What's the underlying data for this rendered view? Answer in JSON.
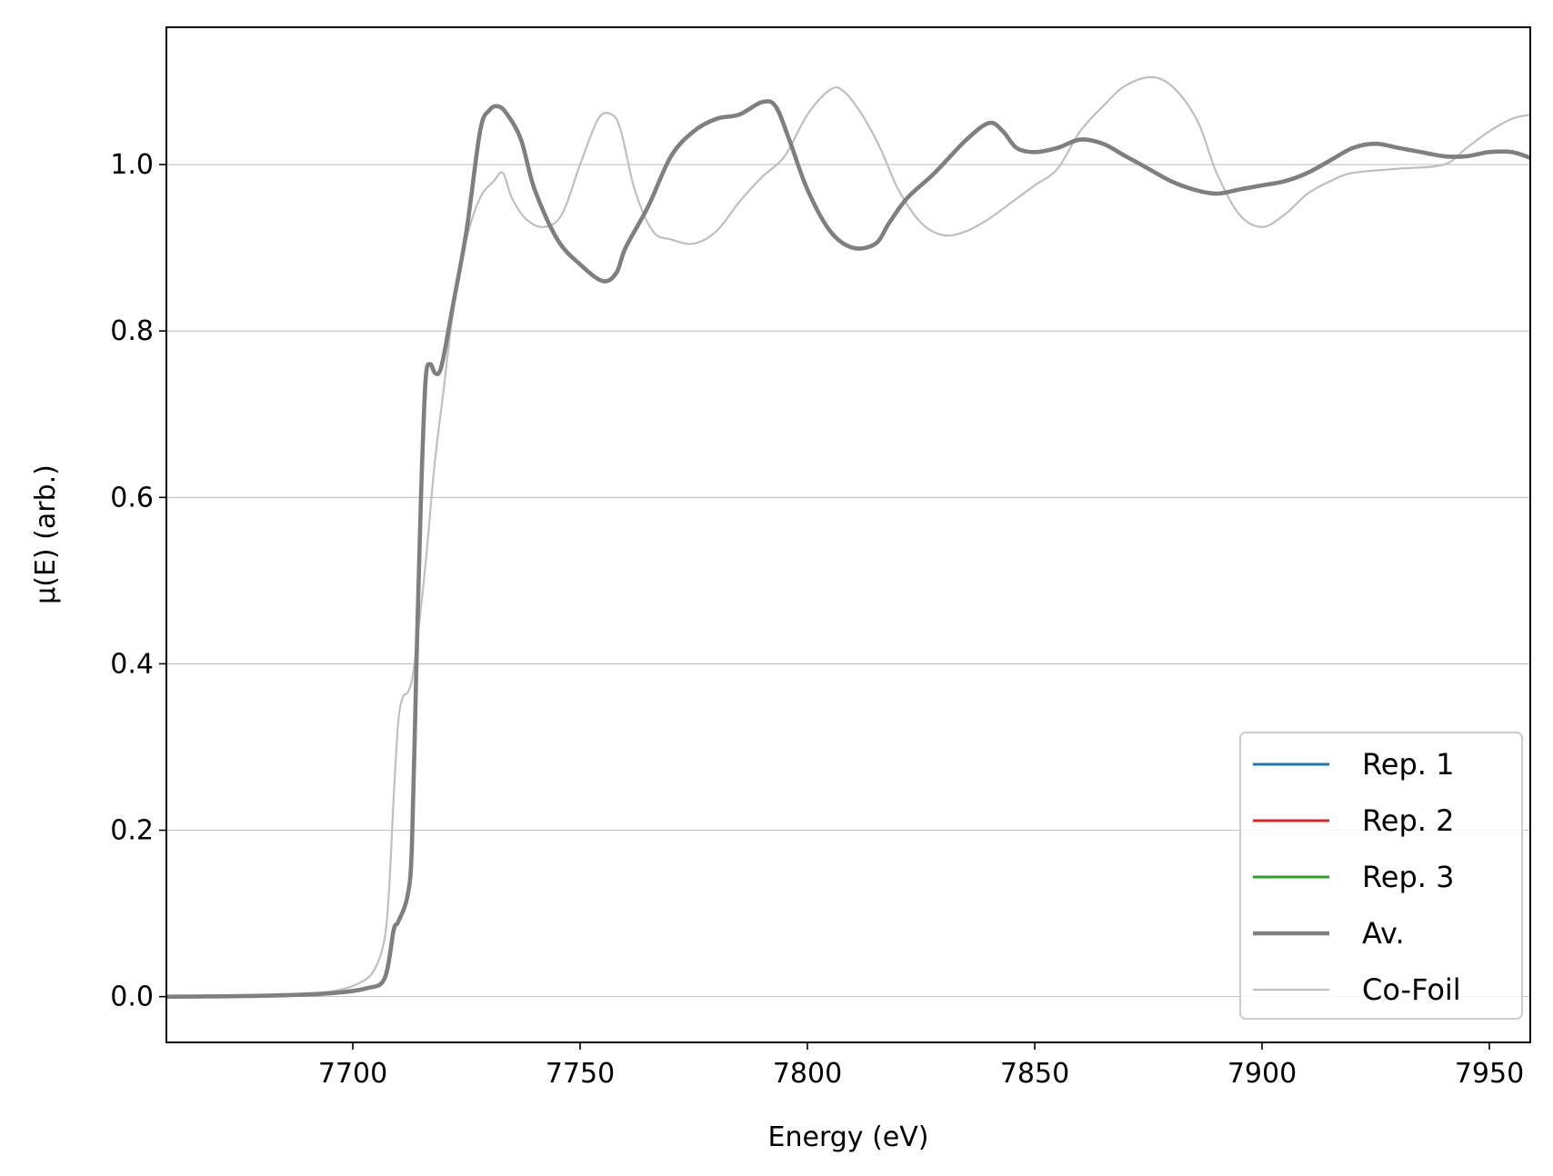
{
  "chart_data": {
    "type": "line",
    "title": "",
    "xlabel": "Energy (eV)",
    "ylabel": "µ(E) (arb.)",
    "xlim": [
      7659,
      7959
    ],
    "ylim": [
      -0.055,
      1.165
    ],
    "xticks": [
      7700,
      7750,
      7800,
      7850,
      7900,
      7950
    ],
    "yticks": [
      0.0,
      0.2,
      0.4,
      0.6,
      0.8,
      1.0
    ],
    "xtick_labels": [
      "7700",
      "7750",
      "7800",
      "7850",
      "7900",
      "7950"
    ],
    "ytick_labels": [
      "0.0",
      "0.2",
      "0.4",
      "0.6",
      "0.8",
      "1.0"
    ],
    "grid": "horizontal",
    "legend_position": "lower-right",
    "series": [
      {
        "name": "Rep. 1",
        "color": "#1f77b4",
        "x": [
          7659,
          7680,
          7695,
          7703,
          7707,
          7709,
          7710,
          7712,
          7713,
          7714,
          7715,
          7716,
          7717,
          7718,
          7719,
          7720,
          7722,
          7725,
          7728,
          7730,
          7732,
          7734,
          7737,
          7740,
          7745,
          7750,
          7755,
          7758,
          7760,
          7765,
          7770,
          7775,
          7780,
          7785,
          7790,
          7793,
          7796,
          7800,
          7805,
          7810,
          7815,
          7818,
          7822,
          7828,
          7835,
          7840,
          7843,
          7846,
          7850,
          7855,
          7860,
          7865,
          7870,
          7875,
          7880,
          7885,
          7890,
          7895,
          7900,
          7905,
          7910,
          7915,
          7920,
          7925,
          7930,
          7935,
          7940,
          7945,
          7950,
          7955,
          7959
        ],
        "y": [
          0.0,
          0.001,
          0.004,
          0.01,
          0.022,
          0.08,
          0.09,
          0.12,
          0.18,
          0.4,
          0.6,
          0.74,
          0.76,
          0.75,
          0.75,
          0.77,
          0.83,
          0.92,
          1.04,
          1.065,
          1.07,
          1.06,
          1.03,
          0.97,
          0.91,
          0.88,
          0.86,
          0.87,
          0.9,
          0.95,
          1.01,
          1.04,
          1.055,
          1.06,
          1.075,
          1.07,
          1.03,
          0.97,
          0.92,
          0.9,
          0.905,
          0.93,
          0.96,
          0.99,
          1.03,
          1.05,
          1.04,
          1.02,
          1.015,
          1.02,
          1.03,
          1.025,
          1.01,
          0.995,
          0.98,
          0.97,
          0.965,
          0.97,
          0.975,
          0.98,
          0.99,
          1.005,
          1.02,
          1.025,
          1.02,
          1.015,
          1.01,
          1.01,
          1.015,
          1.015,
          1.008
        ]
      },
      {
        "name": "Rep. 2",
        "color": "#d62728",
        "x": [
          7659,
          7680,
          7695,
          7703,
          7707,
          7709,
          7710,
          7712,
          7713,
          7714,
          7715,
          7716,
          7717,
          7718,
          7719,
          7720,
          7722,
          7725,
          7728,
          7730,
          7732,
          7734,
          7737,
          7740,
          7745,
          7750,
          7755,
          7758,
          7760,
          7765,
          7770,
          7775,
          7780,
          7785,
          7790,
          7793,
          7796,
          7800,
          7805,
          7810,
          7815,
          7818,
          7822,
          7828,
          7835,
          7840,
          7843,
          7846,
          7850,
          7855,
          7860,
          7865,
          7870,
          7875,
          7880,
          7885,
          7890,
          7895,
          7900,
          7905,
          7910,
          7915,
          7920,
          7925,
          7930,
          7935,
          7940,
          7945,
          7950,
          7955,
          7959
        ],
        "y": [
          0.0,
          0.001,
          0.004,
          0.01,
          0.022,
          0.08,
          0.09,
          0.12,
          0.18,
          0.4,
          0.6,
          0.74,
          0.76,
          0.75,
          0.75,
          0.77,
          0.83,
          0.92,
          1.04,
          1.065,
          1.07,
          1.06,
          1.03,
          0.97,
          0.91,
          0.88,
          0.86,
          0.87,
          0.9,
          0.95,
          1.01,
          1.04,
          1.055,
          1.06,
          1.075,
          1.07,
          1.03,
          0.97,
          0.92,
          0.9,
          0.905,
          0.93,
          0.96,
          0.99,
          1.03,
          1.05,
          1.04,
          1.02,
          1.015,
          1.02,
          1.03,
          1.025,
          1.01,
          0.995,
          0.98,
          0.97,
          0.965,
          0.97,
          0.975,
          0.98,
          0.99,
          1.005,
          1.02,
          1.025,
          1.02,
          1.015,
          1.01,
          1.01,
          1.015,
          1.015,
          1.008
        ]
      },
      {
        "name": "Rep. 3",
        "color": "#2ca02c",
        "x": [
          7659,
          7680,
          7695,
          7703,
          7707,
          7709,
          7710,
          7712,
          7713,
          7714,
          7715,
          7716,
          7717,
          7718,
          7719,
          7720,
          7722,
          7725,
          7728,
          7730,
          7732,
          7734,
          7737,
          7740,
          7745,
          7750,
          7755,
          7758,
          7760,
          7765,
          7770,
          7775,
          7780,
          7785,
          7790,
          7793,
          7796,
          7800,
          7805,
          7810,
          7815,
          7818,
          7822,
          7828,
          7835,
          7840,
          7843,
          7846,
          7850,
          7855,
          7860,
          7865,
          7870,
          7875,
          7880,
          7885,
          7890,
          7895,
          7900,
          7905,
          7910,
          7915,
          7920,
          7925,
          7930,
          7935,
          7940,
          7945,
          7950,
          7955,
          7959
        ],
        "y": [
          0.0,
          0.001,
          0.004,
          0.01,
          0.022,
          0.08,
          0.09,
          0.12,
          0.18,
          0.4,
          0.6,
          0.74,
          0.76,
          0.75,
          0.75,
          0.77,
          0.83,
          0.92,
          1.04,
          1.065,
          1.07,
          1.06,
          1.03,
          0.97,
          0.91,
          0.88,
          0.86,
          0.87,
          0.9,
          0.95,
          1.01,
          1.04,
          1.055,
          1.06,
          1.075,
          1.07,
          1.03,
          0.97,
          0.92,
          0.9,
          0.905,
          0.93,
          0.96,
          0.99,
          1.03,
          1.05,
          1.04,
          1.02,
          1.015,
          1.02,
          1.03,
          1.025,
          1.01,
          0.995,
          0.98,
          0.97,
          0.965,
          0.97,
          0.975,
          0.98,
          0.99,
          1.005,
          1.02,
          1.025,
          1.02,
          1.015,
          1.01,
          1.01,
          1.015,
          1.015,
          1.008
        ]
      },
      {
        "name": "Av.",
        "color": "#7f7f7f",
        "x": [
          7659,
          7680,
          7695,
          7703,
          7707,
          7709,
          7710,
          7712,
          7713,
          7714,
          7715,
          7716,
          7717,
          7718,
          7719,
          7720,
          7722,
          7725,
          7728,
          7730,
          7732,
          7734,
          7737,
          7740,
          7745,
          7750,
          7755,
          7758,
          7760,
          7765,
          7770,
          7775,
          7780,
          7785,
          7790,
          7793,
          7796,
          7800,
          7805,
          7810,
          7815,
          7818,
          7822,
          7828,
          7835,
          7840,
          7843,
          7846,
          7850,
          7855,
          7860,
          7865,
          7870,
          7875,
          7880,
          7885,
          7890,
          7895,
          7900,
          7905,
          7910,
          7915,
          7920,
          7925,
          7930,
          7935,
          7940,
          7945,
          7950,
          7955,
          7959
        ],
        "y": [
          0.0,
          0.001,
          0.004,
          0.01,
          0.022,
          0.08,
          0.09,
          0.12,
          0.18,
          0.4,
          0.6,
          0.74,
          0.76,
          0.75,
          0.75,
          0.77,
          0.83,
          0.92,
          1.04,
          1.065,
          1.07,
          1.06,
          1.03,
          0.97,
          0.91,
          0.88,
          0.86,
          0.87,
          0.9,
          0.95,
          1.01,
          1.04,
          1.055,
          1.06,
          1.075,
          1.07,
          1.03,
          0.97,
          0.92,
          0.9,
          0.905,
          0.93,
          0.96,
          0.99,
          1.03,
          1.05,
          1.04,
          1.02,
          1.015,
          1.02,
          1.03,
          1.025,
          1.01,
          0.995,
          0.98,
          0.97,
          0.965,
          0.97,
          0.975,
          0.98,
          0.99,
          1.005,
          1.02,
          1.025,
          1.02,
          1.015,
          1.01,
          1.01,
          1.015,
          1.015,
          1.008
        ]
      },
      {
        "name": "Co-Foil",
        "color": "#bfbfbf",
        "x": [
          7659,
          7680,
          7695,
          7702,
          7705,
          7707,
          7708,
          7709,
          7710,
          7711,
          7712,
          7713,
          7714,
          7716,
          7718,
          7720,
          7722,
          7725,
          7728,
          7731,
          7733,
          7735,
          7738,
          7742,
          7746,
          7750,
          7754,
          7757,
          7759,
          7762,
          7766,
          7770,
          7775,
          7780,
          7785,
          7790,
          7795,
          7800,
          7805,
          7808,
          7812,
          7816,
          7820,
          7825,
          7830,
          7835,
          7840,
          7845,
          7850,
          7855,
          7860,
          7865,
          7870,
          7876,
          7881,
          7886,
          7890,
          7895,
          7900,
          7905,
          7910,
          7915,
          7920,
          7930,
          7940,
          7945,
          7950,
          7955,
          7959
        ],
        "y": [
          0.0,
          0.001,
          0.006,
          0.018,
          0.035,
          0.07,
          0.13,
          0.24,
          0.33,
          0.36,
          0.365,
          0.38,
          0.42,
          0.52,
          0.64,
          0.73,
          0.82,
          0.91,
          0.96,
          0.98,
          0.99,
          0.96,
          0.935,
          0.925,
          0.94,
          1.0,
          1.055,
          1.06,
          1.04,
          0.97,
          0.92,
          0.91,
          0.905,
          0.92,
          0.955,
          0.985,
          1.01,
          1.06,
          1.09,
          1.088,
          1.06,
          1.02,
          0.97,
          0.93,
          0.915,
          0.92,
          0.935,
          0.955,
          0.975,
          0.995,
          1.04,
          1.07,
          1.095,
          1.105,
          1.09,
          1.05,
          0.99,
          0.94,
          0.925,
          0.94,
          0.965,
          0.98,
          0.99,
          0.995,
          1.0,
          1.02,
          1.04,
          1.055,
          1.06
        ]
      }
    ]
  }
}
